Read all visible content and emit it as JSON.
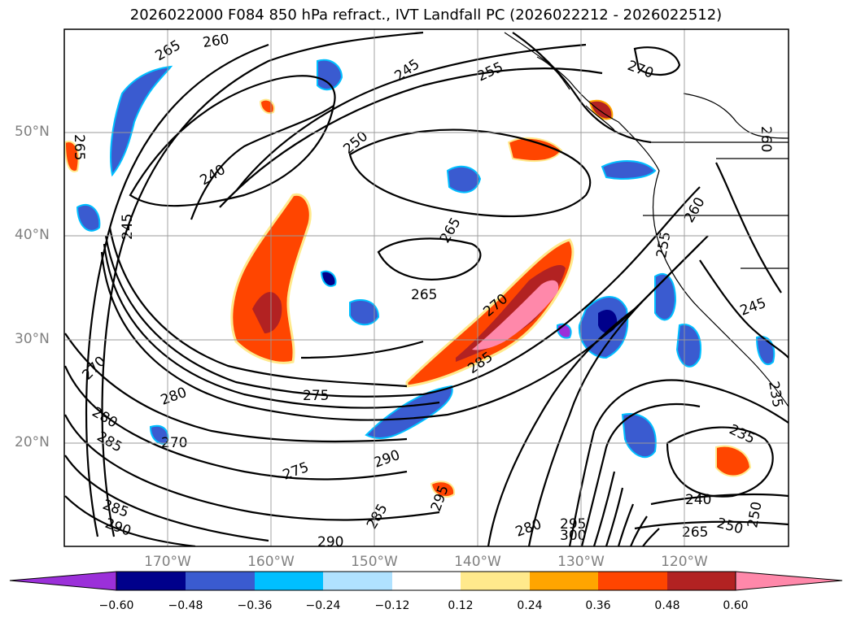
{
  "title": "2026022000 F084 850 hPa refract., IVT Landfall PC (2026022212 - 2026022512)",
  "lat_labels": [
    "50°N",
    "40°N",
    "30°N",
    "20°N"
  ],
  "lon_labels": [
    "170°W",
    "160°W",
    "150°W",
    "140°W",
    "130°W",
    "120°W"
  ],
  "colorbar": {
    "colors": [
      "#9b30d9",
      "#00008b",
      "#3a5bd0",
      "#00bfff",
      "#b0e2ff",
      "#ffffff",
      "#ffe98c",
      "#ffa500",
      "#ff4500",
      "#b22222",
      "#ff88aa"
    ],
    "ticks": [
      "−0.60",
      "−0.48",
      "−0.36",
      "−0.24",
      "−0.12",
      "0.12",
      "0.24",
      "0.36",
      "0.48",
      "0.60"
    ]
  },
  "contour_labels": [
    "260",
    "265",
    "245",
    "255",
    "270",
    "265",
    "250",
    "240",
    "245",
    "265",
    "265",
    "270",
    "285",
    "275",
    "280",
    "270",
    "280",
    "285",
    "270",
    "275",
    "290",
    "295",
    "285",
    "285",
    "290",
    "290",
    "280",
    "295",
    "300",
    "235",
    "240",
    "250",
    "250",
    "265",
    "260",
    "260",
    "255",
    "245",
    "235"
  ]
}
